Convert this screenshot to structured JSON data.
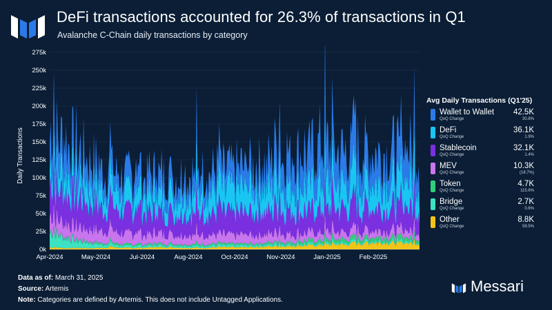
{
  "header": {
    "title": "DeFi transactions accounted for 26.3% of transactions in Q1",
    "subtitle": "Avalanche C-Chain daily transactions by category"
  },
  "legend": {
    "title": "Avg Daily Transactions (Q1'25)",
    "sub_label": "QoQ Change",
    "items": [
      {
        "name": "Wallet to Wallet",
        "value": "42.5K",
        "change": "30.8%"
      },
      {
        "name": "DeFi",
        "value": "36.1K",
        "change": "1.9%"
      },
      {
        "name": "Stablecoin",
        "value": "32.1K",
        "change": "1.4%"
      },
      {
        "name": "MEV",
        "value": "10.3K",
        "change": "(18.7%)"
      },
      {
        "name": "Token",
        "value": "4.7K",
        "change": "115.6%"
      },
      {
        "name": "Bridge",
        "value": "2.7K",
        "change": "0.6%"
      },
      {
        "name": "Other",
        "value": "8.8K",
        "change": "59.5%"
      }
    ]
  },
  "footer": {
    "data_as_of_label": "Data as of:",
    "data_as_of": "March 31, 2025",
    "source_label": "Source:",
    "source": "Artemis",
    "note_label": "Note:",
    "note": "Categories are defined by Artemis. This does not include Untagged Applications."
  },
  "brand": {
    "name": "Messari"
  },
  "colors": {
    "background": "#0b1e36",
    "Wallet to Wallet": "#2a7be8",
    "DeFi": "#19c6f2",
    "Stablecoin": "#7a2fe0",
    "MEV": "#c975ee",
    "Token": "#2fcf7a",
    "Bridge": "#3de2c3",
    "Other": "#f2c418"
  },
  "chart_data": {
    "type": "area",
    "stacked": true,
    "title": "DeFi transactions accounted for 26.3% of transactions in Q1",
    "xlabel": "",
    "ylabel": "Daily Transactions",
    "ylim": [
      0,
      275000
    ],
    "yticks": [
      0,
      25000,
      50000,
      75000,
      100000,
      125000,
      150000,
      175000,
      200000,
      225000,
      250000,
      275000
    ],
    "ytick_labels": [
      "0k",
      "25k",
      "50k",
      "75k",
      "100k",
      "125k",
      "150k",
      "175k",
      "200k",
      "225k",
      "250k",
      "275k"
    ],
    "x_range_days": [
      0,
      360
    ],
    "xticks": [
      {
        "day": 0,
        "label": "Apr-2024"
      },
      {
        "day": 45,
        "label": "May-2024"
      },
      {
        "day": 90,
        "label": "Jul-2024"
      },
      {
        "day": 135,
        "label": "Aug-2024"
      },
      {
        "day": 180,
        "label": "Oct-2024"
      },
      {
        "day": 225,
        "label": "Nov-2024"
      },
      {
        "day": 270,
        "label": "Jan-2025"
      },
      {
        "day": 315,
        "label": "Feb-2025"
      }
    ],
    "sample_days": [
      0,
      15,
      30,
      45,
      60,
      75,
      90,
      105,
      120,
      135,
      150,
      165,
      180,
      195,
      210,
      225,
      240,
      255,
      270,
      285,
      300,
      315,
      330,
      345,
      360
    ],
    "series": [
      {
        "name": "Other",
        "values": [
          3000,
          2000,
          2000,
          2000,
          3000,
          2000,
          2000,
          3000,
          3000,
          2000,
          2000,
          3000,
          3000,
          3000,
          4000,
          4000,
          5000,
          6000,
          6000,
          7000,
          8000,
          9000,
          9000,
          8000,
          8000
        ]
      },
      {
        "name": "Bridge",
        "values": [
          20000,
          14000,
          9000,
          6000,
          4000,
          3000,
          3000,
          3000,
          3000,
          3000,
          3000,
          3000,
          3000,
          3000,
          3000,
          3000,
          3000,
          3000,
          3000,
          3000,
          3000,
          3000,
          3000,
          3000,
          2500
        ]
      },
      {
        "name": "Token",
        "values": [
          3000,
          2000,
          2000,
          2000,
          2000,
          2000,
          2000,
          2000,
          2000,
          2000,
          2000,
          2000,
          2000,
          2000,
          2000,
          3000,
          3000,
          4000,
          4000,
          5000,
          5000,
          5000,
          5000,
          5000,
          4500
        ]
      },
      {
        "name": "MEV",
        "values": [
          22000,
          20000,
          18000,
          17000,
          16000,
          15000,
          14000,
          14000,
          13000,
          13000,
          13000,
          12000,
          12000,
          12000,
          12000,
          12000,
          11000,
          11000,
          11000,
          10000,
          10000,
          10000,
          10000,
          10000,
          10000
        ]
      },
      {
        "name": "Stablecoin",
        "values": [
          45000,
          42000,
          40000,
          35000,
          32000,
          30000,
          30000,
          29000,
          28000,
          29000,
          30000,
          30000,
          31000,
          31000,
          32000,
          32000,
          32000,
          32000,
          32000,
          32000,
          32000,
          32000,
          32000,
          32000,
          32000
        ]
      },
      {
        "name": "DeFi",
        "values": [
          30000,
          30000,
          30000,
          28000,
          26000,
          25000,
          25000,
          26000,
          26000,
          28000,
          30000,
          32000,
          34000,
          36000,
          36000,
          36000,
          36000,
          36000,
          36000,
          36000,
          36000,
          36000,
          36000,
          36000,
          36000
        ]
      },
      {
        "name": "Wallet to Wallet",
        "values": [
          40000,
          45000,
          35000,
          28000,
          25000,
          25000,
          25000,
          26000,
          26000,
          26000,
          27000,
          28000,
          28000,
          30000,
          32000,
          40000,
          45000,
          50000,
          48000,
          45000,
          42000,
          42000,
          42000,
          42000,
          40000
        ]
      }
    ]
  }
}
